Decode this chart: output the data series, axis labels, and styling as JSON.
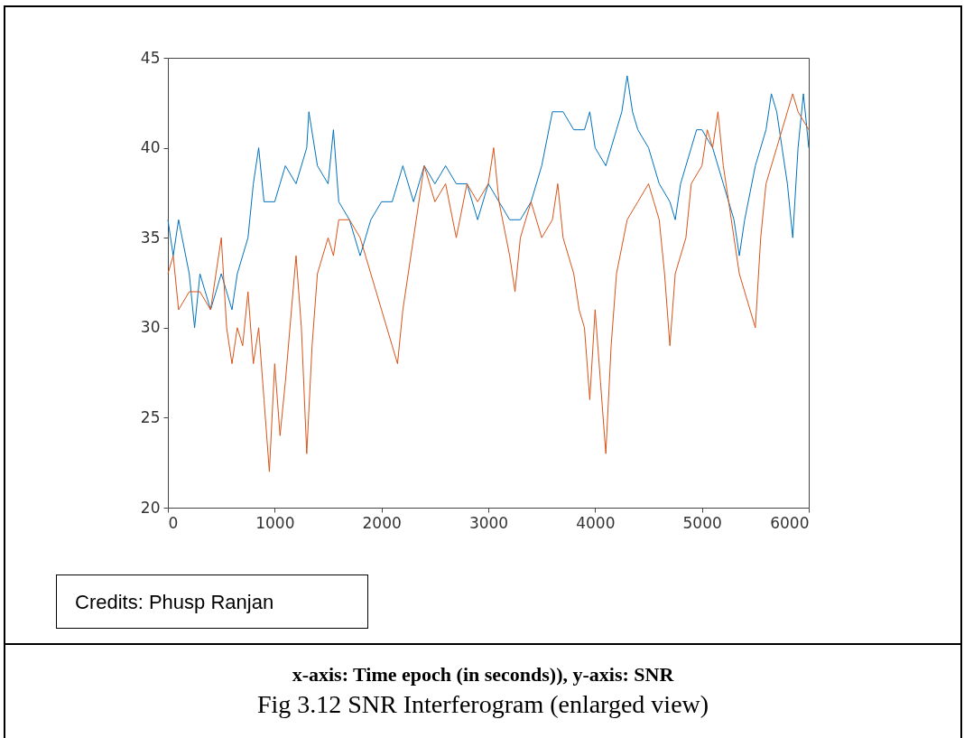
{
  "chart_data": {
    "type": "line",
    "xlim": [
      0,
      6000
    ],
    "xticks": [
      0,
      1000,
      2000,
      3000,
      4000,
      5000,
      6000
    ],
    "ylim": [
      20,
      45
    ],
    "yticks": [
      20,
      25,
      30,
      35,
      40,
      45
    ],
    "grid": false,
    "legend": false,
    "marker": "none",
    "line_style": "solid",
    "x": [
      0,
      50,
      100,
      200,
      250,
      300,
      400,
      500,
      600,
      650,
      700,
      750,
      800,
      850,
      900,
      1000,
      1050,
      1100,
      1200,
      1300,
      1320,
      1400,
      1500,
      1550,
      1600,
      1700,
      1800,
      1900,
      2000,
      2100,
      2200,
      2300,
      2400,
      2500,
      2600,
      2700,
      2800,
      2900,
      3000,
      3100,
      3200,
      3300,
      3400,
      3500,
      3600,
      3700,
      3800,
      3900,
      3950,
      4000,
      4100,
      4200,
      4250,
      4300,
      4350,
      4400,
      4500,
      4600,
      4700,
      4750,
      4800,
      4900,
      4950,
      5000,
      5100,
      5200,
      5250,
      5300,
      5350,
      5400,
      5500,
      5600,
      5650,
      5700,
      5750,
      5800,
      5850,
      5900,
      5950,
      6000
    ],
    "series": [
      {
        "color": "#0072bd",
        "values": [
          36,
          34,
          36,
          33,
          30,
          33,
          31,
          33,
          31,
          33,
          34,
          35,
          38,
          40,
          37,
          37,
          38,
          39,
          38,
          40,
          42,
          39,
          38,
          41,
          37,
          36,
          34,
          36,
          37,
          37,
          39,
          37,
          39,
          38,
          39,
          38,
          38,
          36,
          38,
          37,
          36,
          36,
          37,
          39,
          42,
          42,
          41,
          41,
          42,
          40,
          39,
          41,
          42,
          44,
          42,
          41,
          40,
          38,
          37,
          36,
          38,
          40,
          41,
          41,
          40,
          38,
          37,
          36,
          34,
          36,
          39,
          41,
          43,
          42,
          40,
          38,
          35,
          40,
          43,
          40
        ]
      },
      {
        "color": "#d95319",
        "x": [
          0,
          50,
          100,
          200,
          300,
          400,
          500,
          550,
          600,
          650,
          700,
          750,
          800,
          850,
          900,
          950,
          1000,
          1050,
          1100,
          1200,
          1250,
          1300,
          1350,
          1400,
          1500,
          1550,
          1600,
          1700,
          1800,
          1850,
          1900,
          2000,
          2100,
          2150,
          2200,
          2300,
          2400,
          2500,
          2600,
          2700,
          2800,
          2900,
          3000,
          3050,
          3100,
          3200,
          3250,
          3300,
          3400,
          3500,
          3600,
          3650,
          3700,
          3800,
          3850,
          3900,
          3950,
          4000,
          4050,
          4100,
          4150,
          4200,
          4300,
          4400,
          4500,
          4550,
          4600,
          4650,
          4700,
          4750,
          4800,
          4850,
          4900,
          5000,
          5050,
          5100,
          5150,
          5200,
          5300,
          5350,
          5400,
          5450,
          5500,
          5550,
          5600,
          5700,
          5800,
          5850,
          5900,
          6000
        ],
        "values": [
          33,
          34,
          31,
          32,
          32,
          31,
          35,
          30,
          28,
          30,
          29,
          32,
          28,
          30,
          26,
          22,
          28,
          24,
          27,
          34,
          30,
          23,
          29,
          33,
          35,
          34,
          36,
          36,
          35,
          34,
          33,
          31,
          29,
          28,
          31,
          35,
          39,
          37,
          38,
          35,
          38,
          37,
          38,
          40,
          37,
          34,
          32,
          35,
          37,
          35,
          36,
          38,
          35,
          33,
          31,
          30,
          26,
          31,
          27,
          23,
          29,
          33,
          36,
          37,
          38,
          37,
          36,
          33,
          29,
          33,
          34,
          35,
          38,
          39,
          41,
          40,
          42,
          39,
          35,
          33,
          32,
          31,
          30,
          35,
          38,
          40,
          42,
          43,
          42,
          41
        ]
      }
    ],
    "annotations": [
      "Credits: Phusp Ranjan",
      "x-axis: Time epoch (in seconds)), y-axis: SNR",
      "Fig 3.12 SNR Interferogram (enlarged view)"
    ]
  }
}
